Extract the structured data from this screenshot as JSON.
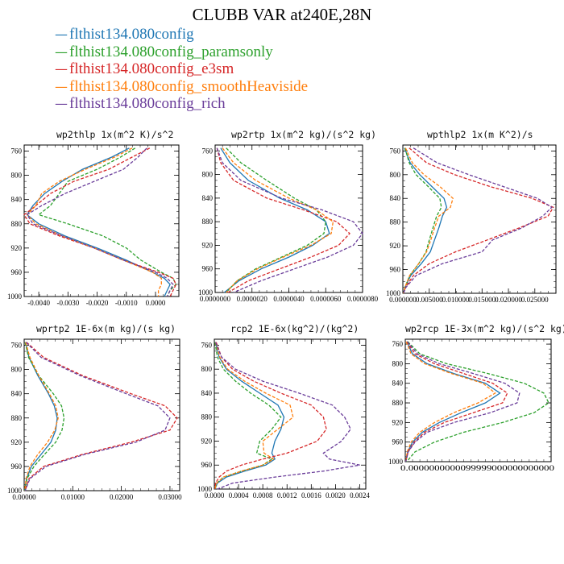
{
  "figure": {
    "title": "CLUBB VAR at240E,28N"
  },
  "legend": [
    {
      "label": "flthist134.080config",
      "color": "#1f77b4"
    },
    {
      "label": "flthist134.080config_paramsonly",
      "color": "#2ca02c"
    },
    {
      "label": "flthist134.080config_e3sm",
      "color": "#d62728"
    },
    {
      "label": "flthist134.080config_smoothHeaviside",
      "color": "#ff7f0e"
    },
    {
      "label": "flthist134.080config_rich",
      "color": "#6a3d9a"
    }
  ],
  "chart_data": [
    {
      "type": "line",
      "title": "wp2thlp  1x(m^2 K)/s^2",
      "xlim": [
        -0.0045,
        0.0008
      ],
      "ylim": [
        1000,
        750
      ],
      "yticks": [
        760,
        800,
        840,
        880,
        920,
        960,
        1000
      ],
      "xticks": [
        {
          "value": -0.004,
          "label": "-0.0040"
        },
        {
          "value": -0.003,
          "label": "-0.0030"
        },
        {
          "value": -0.002,
          "label": "-0.0020"
        },
        {
          "value": -0.001,
          "label": "-0.0010"
        },
        {
          "value": 0.0,
          "label": "0.0000"
        }
      ],
      "y": [
        755,
        770,
        790,
        810,
        830,
        850,
        865,
        880,
        900,
        920,
        940,
        960,
        970,
        980,
        990,
        1000
      ],
      "series": [
        {
          "color": "#1f77b4",
          "dashed": false,
          "x": [
            -0.0009,
            -0.0015,
            -0.0025,
            -0.0032,
            -0.0038,
            -0.0042,
            -0.0044,
            -0.004,
            -0.0031,
            -0.002,
            -0.001,
            -0.0001,
            0.0003,
            0.0005,
            0.0004,
            0.0003
          ]
        },
        {
          "color": "#2ca02c",
          "dashed": true,
          "x": [
            -0.0007,
            -0.0012,
            -0.002,
            -0.003,
            -0.0033,
            -0.0036,
            -0.004,
            -0.003,
            -0.0018,
            -0.001,
            -0.0005,
            0.0002,
            0.0006,
            0.0007,
            0.0005,
            0.0004
          ]
        },
        {
          "color": "#d62728",
          "dashed": true,
          "x": [
            -0.0002,
            -0.0008,
            -0.0016,
            -0.0028,
            -0.0036,
            -0.0041,
            -0.0045,
            -0.0043,
            -0.0033,
            -0.0021,
            -0.0011,
            0.0001,
            0.0006,
            0.0007,
            0.0006,
            0.0005
          ]
        },
        {
          "color": "#ff7f0e",
          "dashed": true,
          "x": [
            -0.0008,
            -0.0014,
            -0.0024,
            -0.0033,
            -0.0039,
            -0.0041,
            -0.0044,
            -0.0041,
            -0.0032,
            -0.0021,
            -0.0011,
            -0.0001,
            0.0002,
            0.0002,
            0.0001,
            0.0001
          ]
        },
        {
          "color": "#6a3d9a",
          "dashed": true,
          "x": [
            -0.0003,
            -0.0006,
            -0.0011,
            -0.0021,
            -0.0031,
            -0.0039,
            -0.0044,
            -0.0042,
            -0.0032,
            -0.0021,
            -0.0011,
            0.0,
            0.0004,
            0.0006,
            0.0005,
            0.0004
          ]
        }
      ]
    },
    {
      "type": "line",
      "title": "wp2rtp  1x(m^2 kg)/(s^2 kg)",
      "xlim": [
        0.0,
        8e-06
      ],
      "ylim": [
        1000,
        750
      ],
      "yticks": [
        760,
        800,
        840,
        880,
        920,
        960,
        1000
      ],
      "xticks": [
        {
          "value": 0.0,
          "label": "0.0000000"
        },
        {
          "value": 2e-06,
          "label": "0.0000020"
        },
        {
          "value": 4e-06,
          "label": "0.0000040"
        },
        {
          "value": 6e-06,
          "label": "0.0000060"
        },
        {
          "value": 8e-06,
          "label": "0.0000080"
        }
      ],
      "y": [
        755,
        780,
        810,
        840,
        860,
        880,
        900,
        920,
        940,
        960,
        980,
        1000
      ],
      "series": [
        {
          "color": "#1f77b4",
          "dashed": false,
          "x": [
            3e-07,
            8e-07,
            1.8e-06,
            3.5e-06,
            5e-06,
            6e-06,
            6.2e-06,
            5.3e-06,
            4e-06,
            2.5e-06,
            1.3e-06,
            5e-07
          ]
        },
        {
          "color": "#2ca02c",
          "dashed": true,
          "x": [
            6e-07,
            1.4e-06,
            2.8e-06,
            4.3e-06,
            5.5e-06,
            6e-06,
            5.9e-06,
            5e-06,
            3.6e-06,
            2.2e-06,
            1.2e-06,
            6e-07
          ]
        },
        {
          "color": "#d62728",
          "dashed": true,
          "x": [
            1e-07,
            3e-07,
            1e-06,
            2.8e-06,
            4.8e-06,
            6.6e-06,
            7.3e-06,
            6.7e-06,
            5.2e-06,
            3.5e-06,
            1.8e-06,
            7e-07
          ]
        },
        {
          "color": "#ff7f0e",
          "dashed": true,
          "x": [
            4e-07,
            1e-06,
            2.2e-06,
            4e-06,
            5.5e-06,
            6.4e-06,
            6.3e-06,
            5.2e-06,
            3.7e-06,
            2.3e-06,
            1.2e-06,
            6e-07
          ]
        },
        {
          "color": "#6a3d9a",
          "dashed": true,
          "x": [
            1e-07,
            4e-07,
            1.4e-06,
            3.6e-06,
            5.8e-06,
            7.5e-06,
            8e-06,
            7.5e-06,
            6.1e-06,
            4.3e-06,
            2.5e-06,
            1e-06
          ]
        }
      ]
    },
    {
      "type": "line",
      "title": "wpthlp2  1x(m K^2)/s",
      "xlim": [
        0.0,
        0.029
      ],
      "ylim": [
        1000,
        750
      ],
      "yticks": [
        760,
        800,
        840,
        880,
        920,
        960,
        1000
      ],
      "xticks": [
        {
          "value": 0.0,
          "label": "0.000000"
        },
        {
          "value": 0.005,
          "label": "0.005000"
        },
        {
          "value": 0.01,
          "label": "0.010000"
        },
        {
          "value": 0.015,
          "label": "0.015000"
        },
        {
          "value": 0.02,
          "label": "0.020000"
        },
        {
          "value": 0.025,
          "label": "0.025000"
        }
      ],
      "y": [
        755,
        780,
        800,
        820,
        840,
        855,
        870,
        890,
        910,
        930,
        950,
        970,
        990,
        1000
      ],
      "series": [
        {
          "color": "#1f77b4",
          "dashed": false,
          "x": [
            0.0003,
            0.0014,
            0.0032,
            0.0055,
            0.0078,
            0.0083,
            0.0075,
            0.0068,
            0.006,
            0.0052,
            0.0035,
            0.0015,
            0.0004,
            0.0001
          ]
        },
        {
          "color": "#2ca02c",
          "dashed": true,
          "x": [
            0.0004,
            0.0012,
            0.0025,
            0.0048,
            0.007,
            0.0073,
            0.0064,
            0.0057,
            0.005,
            0.0044,
            0.003,
            0.0013,
            0.0004,
            0.0001
          ]
        },
        {
          "color": "#d62728",
          "dashed": true,
          "x": [
            0.0012,
            0.0045,
            0.0098,
            0.0165,
            0.0245,
            0.0285,
            0.0275,
            0.022,
            0.016,
            0.01,
            0.005,
            0.002,
            0.0005,
            0.0001
          ]
        },
        {
          "color": "#ff7f0e",
          "dashed": true,
          "x": [
            0.0005,
            0.0018,
            0.004,
            0.007,
            0.0095,
            0.009,
            0.0068,
            0.006,
            0.0053,
            0.0045,
            0.003,
            0.0013,
            0.0004,
            0.0001
          ]
        },
        {
          "color": "#6a3d9a",
          "dashed": true,
          "x": [
            0.002,
            0.0065,
            0.0125,
            0.019,
            0.0255,
            0.0282,
            0.0265,
            0.0225,
            0.017,
            0.015,
            0.0075,
            0.0025,
            0.0006,
            0.0001
          ]
        }
      ]
    },
    {
      "type": "line",
      "title": "wprtp2  1E-6x(m kg)/(s kg)",
      "xlim": [
        0.0,
        0.032
      ],
      "ylim": [
        1000,
        750
      ],
      "yticks": [
        760,
        800,
        840,
        880,
        920,
        960,
        1000
      ],
      "xticks": [
        {
          "value": 0.0,
          "label": "0.00000"
        },
        {
          "value": 0.01,
          "label": "0.01000"
        },
        {
          "value": 0.02,
          "label": "0.02000"
        },
        {
          "value": 0.03,
          "label": "0.03000"
        }
      ],
      "y": [
        755,
        780,
        810,
        840,
        860,
        880,
        900,
        920,
        940,
        960,
        980,
        1000
      ],
      "series": [
        {
          "color": "#1f77b4",
          "dashed": false,
          "x": [
            0.0003,
            0.001,
            0.0028,
            0.005,
            0.0062,
            0.0068,
            0.0065,
            0.0055,
            0.0035,
            0.0015,
            0.0005,
            0.0001
          ]
        },
        {
          "color": "#2ca02c",
          "dashed": true,
          "x": [
            0.0002,
            0.0009,
            0.003,
            0.006,
            0.0077,
            0.0082,
            0.0078,
            0.0065,
            0.0042,
            0.002,
            0.0006,
            0.0001
          ]
        },
        {
          "color": "#d62728",
          "dashed": true,
          "x": [
            0.0005,
            0.004,
            0.012,
            0.022,
            0.029,
            0.0315,
            0.03,
            0.022,
            0.012,
            0.004,
            0.001,
            0.0002
          ]
        },
        {
          "color": "#ff7f0e",
          "dashed": true,
          "x": [
            0.0003,
            0.0012,
            0.003,
            0.0052,
            0.0065,
            0.007,
            0.0063,
            0.0048,
            0.0028,
            0.0012,
            0.0004,
            0.0001
          ]
        },
        {
          "color": "#6a3d9a",
          "dashed": true,
          "x": [
            0.0004,
            0.0035,
            0.0115,
            0.021,
            0.0275,
            0.03,
            0.029,
            0.023,
            0.0125,
            0.0045,
            0.0012,
            0.0002
          ]
        }
      ]
    },
    {
      "type": "line",
      "title": "rcp2  1E-6x(kg^2)/(kg^2)",
      "xlim": [
        0.0,
        0.0025
      ],
      "ylim": [
        1000,
        750
      ],
      "yticks": [
        760,
        800,
        840,
        880,
        920,
        960,
        1000
      ],
      "xticks": [
        {
          "value": 0.0,
          "label": "0.0000"
        },
        {
          "value": 0.0004,
          "label": "0.0004"
        },
        {
          "value": 0.0008,
          "label": "0.0008"
        },
        {
          "value": 0.0012,
          "label": "0.0012"
        },
        {
          "value": 0.0016,
          "label": "0.0016"
        },
        {
          "value": 0.002,
          "label": "0.0020"
        },
        {
          "value": 0.0024,
          "label": "0.0024"
        }
      ],
      "y": [
        755,
        780,
        800,
        820,
        840,
        860,
        880,
        900,
        920,
        940,
        950,
        960,
        970,
        980,
        990,
        1000
      ],
      "series": [
        {
          "color": "#1f77b4",
          "dashed": false,
          "x": [
            2e-05,
            8e-05,
            0.0002,
            0.00045,
            0.00075,
            0.00105,
            0.00115,
            0.0011,
            0.001,
            0.00095,
            0.001,
            0.00085,
            0.0005,
            0.0002,
            5e-05,
            1e-05
          ]
        },
        {
          "color": "#2ca02c",
          "dashed": true,
          "x": [
            1e-05,
            5e-05,
            0.00015,
            0.00035,
            0.0006,
            0.0009,
            0.0011,
            0.00095,
            0.00075,
            0.0007,
            0.00095,
            0.0008,
            0.00045,
            0.00015,
            4e-05,
            1e-05
          ]
        },
        {
          "color": "#d62728",
          "dashed": true,
          "x": [
            3e-05,
            0.00012,
            0.0003,
            0.00065,
            0.0011,
            0.0016,
            0.0018,
            0.00185,
            0.0017,
            0.0012,
            0.0008,
            0.00045,
            0.0002,
            8e-05,
            2e-05,
            1e-05
          ]
        },
        {
          "color": "#ff7f0e",
          "dashed": true,
          "x": [
            2e-05,
            9e-05,
            0.00022,
            0.0005,
            0.00085,
            0.00125,
            0.0013,
            0.00105,
            0.0008,
            0.00082,
            0.00098,
            0.0008,
            0.00045,
            0.00015,
            4e-05,
            1e-05
          ]
        },
        {
          "color": "#6a3d9a",
          "dashed": true,
          "x": [
            2e-05,
            0.00012,
            0.00035,
            0.0008,
            0.0014,
            0.00195,
            0.00215,
            0.00225,
            0.0021,
            0.0018,
            0.0019,
            0.0024,
            0.0018,
            0.001,
            0.0003,
            5e-05
          ]
        }
      ]
    },
    {
      "type": "line",
      "title": "wp2rcp  1E-3x(m^2 kg)/(s^2 kg)",
      "xlim": [
        0.0,
        0.0003
      ],
      "ylim": [
        1000,
        750
      ],
      "yticks": [
        760,
        800,
        840,
        880,
        920,
        960,
        1000
      ],
      "xticks": [],
      "xtick_label_row": "0.0000000000099999000000000000",
      "y": [
        755,
        780,
        800,
        820,
        840,
        860,
        880,
        900,
        920,
        940,
        960,
        980,
        1000
      ],
      "series": [
        {
          "color": "#1f77b4",
          "dashed": false,
          "x": [
            3e-06,
            1.5e-05,
            4.5e-05,
            0.0001,
            0.000165,
            0.000195,
            0.000165,
            0.000115,
            7e-05,
            3.5e-05,
            1.5e-05,
            5e-06,
            1e-06
          ]
        },
        {
          "color": "#2ca02c",
          "dashed": true,
          "x": [
            5e-06,
            3e-05,
            8.5e-05,
            0.00017,
            0.000245,
            0.000285,
            0.000295,
            0.000265,
            0.0002,
            0.00012,
            6e-05,
            2e-05,
            3e-06
          ]
        },
        {
          "color": "#d62728",
          "dashed": true,
          "x": [
            3e-06,
            2e-05,
            6e-05,
            0.00012,
            0.00018,
            0.00021,
            0.0002,
            0.00014,
            8e-05,
            4e-05,
            1.8e-05,
            6e-06,
            1e-06
          ]
        },
        {
          "color": "#ff7f0e",
          "dashed": true,
          "x": [
            2e-06,
            1.2e-05,
            4e-05,
            9.5e-05,
            0.00016,
            0.000185,
            0.00015,
            0.0001,
            6e-05,
            3e-05,
            1.2e-05,
            4e-06,
            1e-06
          ]
        },
        {
          "color": "#6a3d9a",
          "dashed": true,
          "x": [
            4e-06,
            2.5e-05,
            7e-05,
            0.00014,
            0.000205,
            0.000235,
            0.00023,
            0.000175,
            0.0001,
            4.5e-05,
            2e-05,
            6e-06,
            1e-06
          ]
        }
      ]
    }
  ]
}
